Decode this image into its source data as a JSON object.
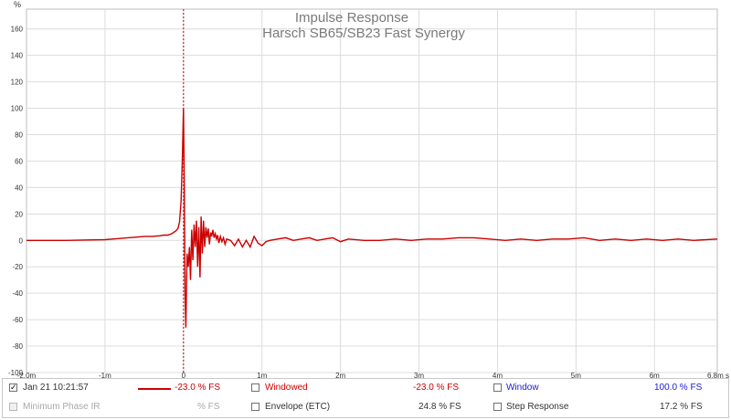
{
  "chart_data": {
    "type": "line",
    "title": "Impulse Response",
    "subtitle": "Harsch SB65/SB23 Fast Synergy",
    "ylabel": "%",
    "xlabel": "",
    "xlim": [
      -2.0,
      6.8
    ],
    "ylim": [
      -100,
      175
    ],
    "x_ticks": [
      {
        "v": -2.0,
        "label": "-2.0m"
      },
      {
        "v": -1,
        "label": "-1m"
      },
      {
        "v": 0,
        "label": "0"
      },
      {
        "v": 1,
        "label": "1m"
      },
      {
        "v": 2,
        "label": "2m"
      },
      {
        "v": 3,
        "label": "3m"
      },
      {
        "v": 4,
        "label": "4m"
      },
      {
        "v": 5,
        "label": "5m"
      },
      {
        "v": 6,
        "label": "6m"
      },
      {
        "v": 6.8,
        "label": "6.8m s"
      }
    ],
    "y_ticks": [
      160,
      140,
      120,
      100,
      80,
      60,
      40,
      20,
      0,
      -20,
      -40,
      -60,
      -80,
      -100
    ],
    "grid": true,
    "marker_x": 0,
    "series": [
      {
        "color": "#cc0000",
        "x_units": "ms",
        "x": [
          -2.0,
          -1.5,
          -1.0,
          -0.8,
          -0.6,
          -0.5,
          -0.4,
          -0.3,
          -0.25,
          -0.2,
          -0.15,
          -0.1,
          -0.07,
          -0.05,
          -0.03,
          -0.015,
          0.0,
          0.01,
          0.02,
          0.03,
          0.045,
          0.06,
          0.075,
          0.09,
          0.105,
          0.12,
          0.135,
          0.15,
          0.165,
          0.18,
          0.195,
          0.21,
          0.225,
          0.24,
          0.255,
          0.27,
          0.285,
          0.3,
          0.315,
          0.33,
          0.345,
          0.36,
          0.375,
          0.39,
          0.405,
          0.42,
          0.435,
          0.45,
          0.47,
          0.49,
          0.51,
          0.53,
          0.55,
          0.6,
          0.65,
          0.7,
          0.75,
          0.8,
          0.85,
          0.9,
          0.95,
          1.0,
          1.05,
          1.1,
          1.2,
          1.3,
          1.4,
          1.5,
          1.6,
          1.7,
          1.8,
          1.9,
          2.0,
          2.1,
          2.3,
          2.5,
          2.7,
          2.9,
          3.1,
          3.3,
          3.5,
          3.7,
          3.9,
          4.1,
          4.3,
          4.5,
          4.7,
          4.9,
          5.1,
          5.3,
          5.5,
          5.7,
          5.9,
          6.1,
          6.3,
          6.5,
          6.8
        ],
        "y": [
          0,
          0,
          0.5,
          1.5,
          2.5,
          3,
          3,
          3.5,
          4,
          4,
          5,
          7,
          9,
          14,
          30,
          60,
          100,
          40,
          -40,
          -66,
          -10,
          -20,
          -5,
          -30,
          8,
          -15,
          12,
          -5,
          15,
          -20,
          10,
          -28,
          18,
          -10,
          15,
          -5,
          10,
          2,
          9,
          -3,
          6,
          3,
          8,
          2,
          5,
          1,
          4,
          -2,
          3,
          -1,
          2,
          -3,
          1,
          0,
          -4,
          1,
          -5,
          0,
          -5,
          3,
          -2,
          -4,
          -1,
          0,
          1,
          2,
          0,
          1,
          2,
          0,
          1,
          2,
          -1,
          1,
          0,
          0,
          1,
          0,
          1,
          1,
          2,
          2,
          1,
          0,
          1,
          0,
          1,
          1,
          2,
          0,
          1,
          0,
          1,
          0,
          1,
          0,
          1
        ]
      }
    ]
  },
  "legend": {
    "row1": {
      "date_label": "Jan 21 10:21:57",
      "date_value": "-23.0 % FS",
      "windowed_label": "Windowed",
      "windowed_value": "-23.0 % FS",
      "window_label": "Window",
      "window_value": "100.0 % FS"
    },
    "row2": {
      "minphase_label": "Minimum Phase IR",
      "minphase_value": "% FS",
      "envelope_label": "Envelope (ETC)",
      "envelope_value": "24.8 % FS",
      "step_label": "Step Response",
      "step_value": "17.2 % FS"
    },
    "checked_mark": "✓"
  }
}
